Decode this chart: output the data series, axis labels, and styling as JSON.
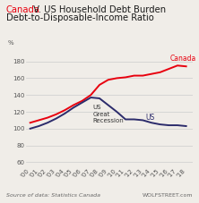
{
  "title_red": "Canada",
  "title_black": " V. US Household Debt Burden",
  "subtitle": "Debt-to-Disposable-Income Ratio",
  "ylabel": "%",
  "ylim": [
    55,
    195
  ],
  "yticks": [
    60,
    80,
    100,
    120,
    140,
    160,
    180
  ],
  "years": [
    2000,
    2001,
    2002,
    2003,
    2004,
    2005,
    2006,
    2007,
    2008,
    2009,
    2010,
    2011,
    2012,
    2013,
    2014,
    2015,
    2016,
    2017,
    2018
  ],
  "canada": [
    107,
    110,
    113,
    117,
    122,
    128,
    133,
    140,
    152,
    158,
    160,
    161,
    163,
    163,
    165,
    167,
    171,
    175,
    174
  ],
  "us": [
    100,
    103,
    107,
    112,
    118,
    125,
    131,
    137,
    136,
    128,
    120,
    111,
    111,
    110,
    107,
    105,
    104,
    104,
    103
  ],
  "canada_color": "#e8000e",
  "us_color": "#2b2b6b",
  "background_color": "#f0ede8",
  "source_text": "Source of data: Statistics Canada",
  "credit_text": "WOLFSTREET.com",
  "annotation_us": "US\nGreat\nRecession",
  "annotation_canada": "Canada",
  "annotation_us_label": "US",
  "grid_color": "#cccccc",
  "title_fontsize": 7.2,
  "subtitle_fontsize": 7.2,
  "tick_fontsize": 5.0,
  "source_fontsize": 4.5
}
